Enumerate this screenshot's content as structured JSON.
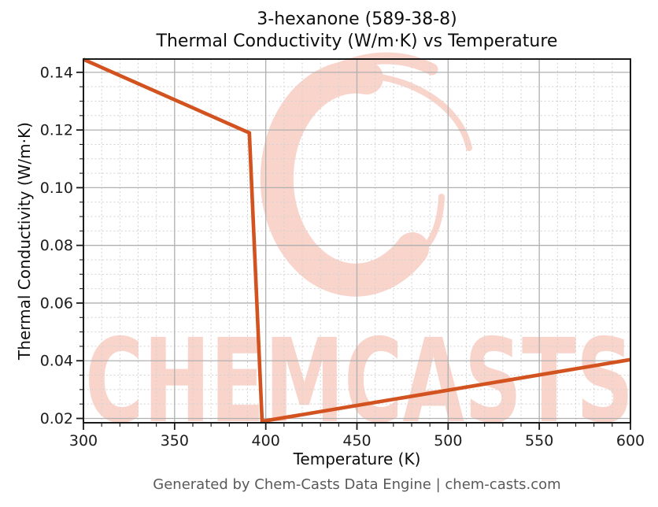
{
  "figure": {
    "footer": "Generated by Chem-Casts Data Engine | chem-casts.com"
  },
  "watermark": {
    "text": "CHEMCASTS",
    "logo": "brush-circle-logo",
    "color": "#f9d4cb"
  },
  "chart_data": {
    "type": "line",
    "title": "3-hexanone (589-38-8)",
    "subtitle": "Thermal Conductivity (W/m·K) vs Temperature",
    "xlabel": "Temperature (K)",
    "ylabel": "Thermal Conductivity (W/m·K)",
    "xlim": [
      300,
      600
    ],
    "ylim": [
      0.0185,
      0.1446
    ],
    "x_ticks": [
      300,
      350,
      400,
      450,
      500,
      550,
      600
    ],
    "x_tick_labels": [
      "300",
      "350",
      "400",
      "450",
      "500",
      "550",
      "600"
    ],
    "y_ticks": [
      0.02,
      0.04,
      0.06,
      0.08,
      0.1,
      0.12,
      0.14
    ],
    "y_tick_labels": [
      "0.02",
      "0.04",
      "0.06",
      "0.08",
      "0.10",
      "0.12",
      "0.14"
    ],
    "x_minor_step": 10,
    "y_minor_step": 0.005,
    "grid": {
      "major": true,
      "minor": true
    },
    "legend": "none",
    "line_color": "#d2531f",
    "series": [
      {
        "name": "Thermal Conductivity (W/m·K)",
        "points": [
          [
            300,
            0.1445
          ],
          [
            391,
            0.119
          ],
          [
            398,
            0.019
          ],
          [
            600,
            0.0404
          ]
        ]
      }
    ]
  }
}
